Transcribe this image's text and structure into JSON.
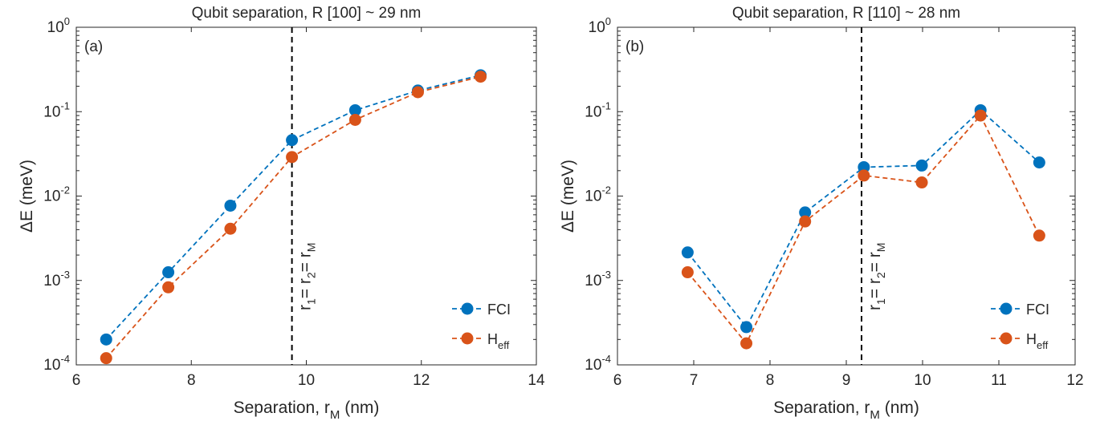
{
  "chart_data": [
    {
      "type": "line",
      "panel_label": "(a)",
      "title": "Qubit separation, R [100] ~ 29 nm",
      "xlabel": "Separation, r",
      "xlabel_sub": "M",
      "xlabel_unit": " (nm)",
      "ylabel": "ΔE (meV)",
      "y_scale": "log",
      "xlim": [
        6,
        14
      ],
      "ylim_exp": [
        -4,
        0
      ],
      "x_ticks": [
        6,
        8,
        10,
        12,
        14
      ],
      "vline": {
        "x": 9.75,
        "label": {
          "r1": "r",
          "sub1": "1",
          "r2": "= r",
          "sub2": "2",
          "r3": "= r",
          "sub3": "M"
        }
      },
      "legend_position": "bottom-right",
      "series": [
        {
          "name": "FCI",
          "name_sub": "",
          "color": "#0072BD",
          "x": [
            6.52,
            7.6,
            8.68,
            9.75,
            10.85,
            11.94,
            13.03
          ],
          "y": [
            0.0002,
            0.00125,
            0.0077,
            0.046,
            0.104,
            0.178,
            0.27
          ]
        },
        {
          "name": "H",
          "name_sub": "eff",
          "color": "#D95319",
          "x": [
            6.52,
            7.6,
            8.68,
            9.75,
            10.85,
            11.94,
            13.03
          ],
          "y": [
            0.00012,
            0.00083,
            0.0041,
            0.029,
            0.08,
            0.17,
            0.26
          ]
        }
      ]
    },
    {
      "type": "line",
      "panel_label": "(b)",
      "title": "Qubit separation, R [110] ~ 28 nm",
      "xlabel": "Separation, r",
      "xlabel_sub": "M",
      "xlabel_unit": " (nm)",
      "ylabel": "ΔE (meV)",
      "y_scale": "log",
      "xlim": [
        6,
        12
      ],
      "ylim_exp": [
        -4,
        0
      ],
      "x_ticks": [
        6,
        7,
        8,
        9,
        10,
        11,
        12
      ],
      "vline": {
        "x": 9.2,
        "label": {
          "r1": "r",
          "sub1": "1",
          "r2": "= r",
          "sub2": "2",
          "r3": "= r",
          "sub3": "M"
        }
      },
      "legend_position": "bottom-right",
      "series": [
        {
          "name": "FCI",
          "name_sub": "",
          "color": "#0072BD",
          "x": [
            6.92,
            7.69,
            8.46,
            9.23,
            9.99,
            10.76,
            11.53
          ],
          "y": [
            0.00215,
            0.00028,
            0.0064,
            0.022,
            0.023,
            0.104,
            0.025
          ]
        },
        {
          "name": "H",
          "name_sub": "eff",
          "color": "#D95319",
          "x": [
            6.92,
            7.69,
            8.46,
            9.23,
            9.99,
            10.76,
            11.53
          ],
          "y": [
            0.00125,
            0.00018,
            0.005,
            0.0175,
            0.0145,
            0.09,
            0.0034
          ]
        }
      ]
    }
  ]
}
